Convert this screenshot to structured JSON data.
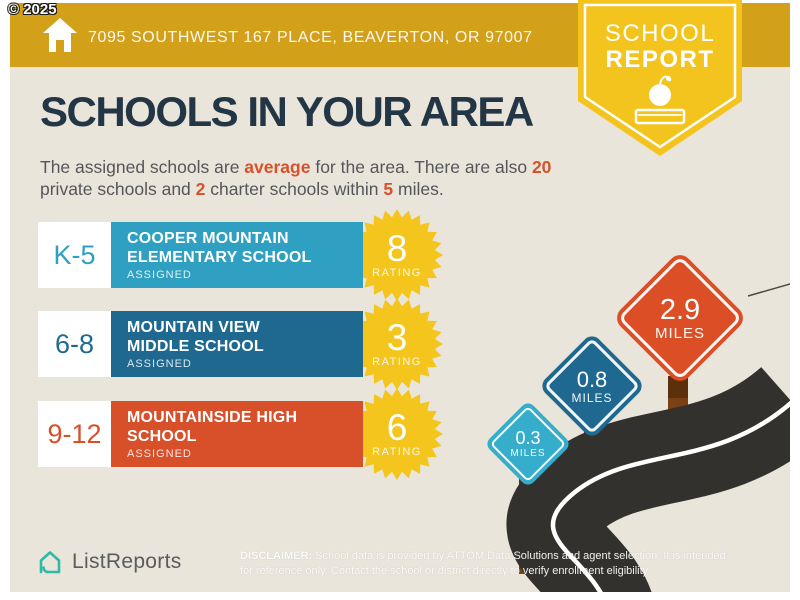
{
  "copyright": "© 2025",
  "header": {
    "address": "7095 SOUTHWEST 167 PLACE, BEAVERTON, OR 97007"
  },
  "badge": {
    "word1": "SCHOOL",
    "word2": "REPORT"
  },
  "main": {
    "title": "SCHOOLS IN YOUR AREA",
    "intro": {
      "pre": "The assigned schools are ",
      "hl1": "average",
      "mid1": " for the area. There are also ",
      "hl2": "20",
      "line2pre": "private schools and ",
      "hl3": "2",
      "mid2": " charter schools within ",
      "hl4": "5",
      "post": " miles."
    }
  },
  "labels": {
    "assigned": "ASSIGNED",
    "rating": "RATING",
    "miles": "MILES"
  },
  "schools": [
    {
      "grades": "K-5",
      "name": "COOPER MOUNTAIN ELEMENTARY SCHOOL",
      "rating": "8",
      "color": "#2FA0C2"
    },
    {
      "grades": "6-8",
      "name": "MOUNTAIN VIEW MIDDLE SCHOOL",
      "rating": "3",
      "color": "#1F6991"
    },
    {
      "grades": "9-12",
      "name": "MOUNTAINSIDE HIGH SCHOOL",
      "rating": "6",
      "color": "#D8502A"
    }
  ],
  "signs": [
    {
      "distance": "0.3",
      "color": "#36ADCB"
    },
    {
      "distance": "0.8",
      "color": "#1F6991"
    },
    {
      "distance": "2.9",
      "color": "#DB4E26"
    }
  ],
  "footer": {
    "brand": "ListReports",
    "disclaimer_label": "DISCLAIMER:",
    "disclaimer_line1": " School data is provided by ATTOM Data Solutions and agent selection. It is intended",
    "disclaimer_line2": "for reference only. Contact the school or district directly to verify enrollment eligibility."
  },
  "colors": {
    "top_bar": "#D2A019",
    "badge_yellow": "#F2C41D",
    "background": "#EAE5DA",
    "heading": "#233645",
    "body_text": "#55565A",
    "accent": "#D8512B",
    "starburst": "#F3C51D",
    "road": "#33312E",
    "post_brown": "#7B4113",
    "brand_teal": "#2CB9A6"
  }
}
